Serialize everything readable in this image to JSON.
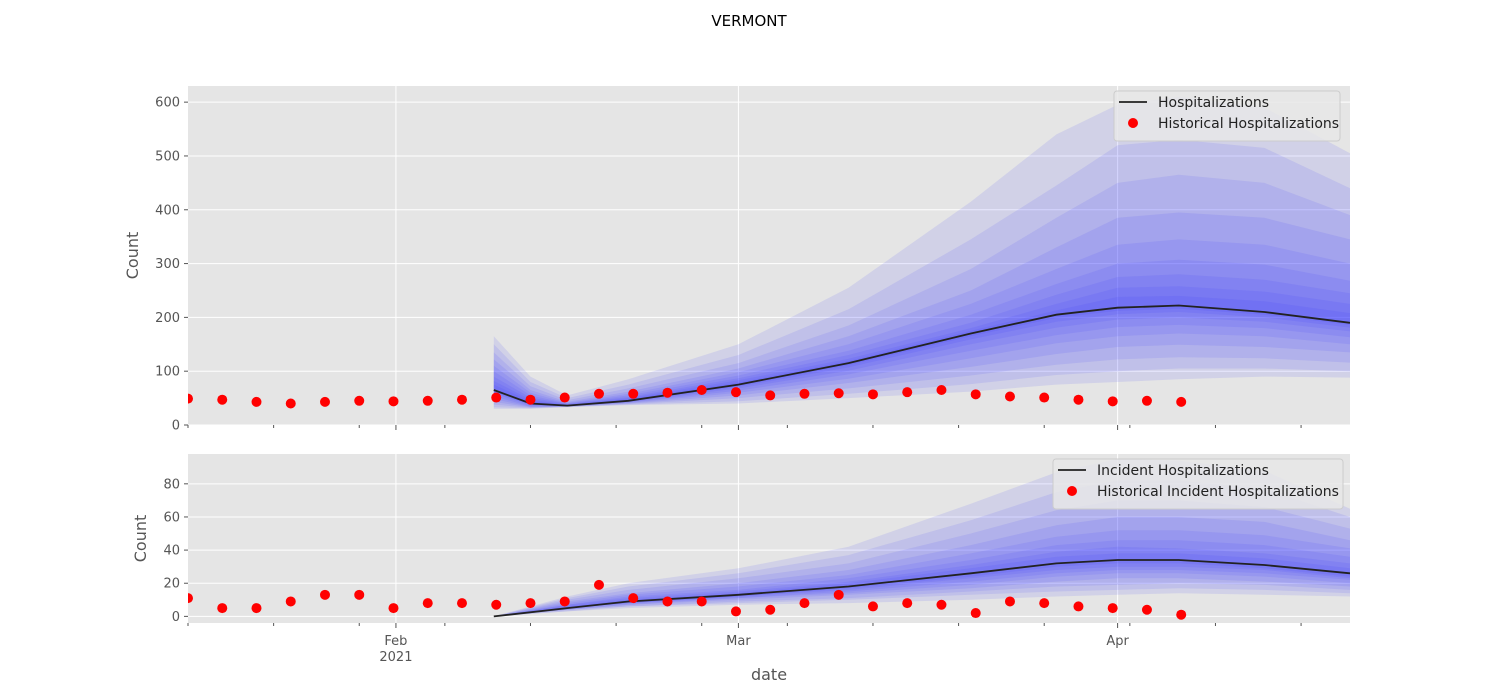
{
  "figure": {
    "title": "VERMONT",
    "xlabel": "date",
    "x_ticks": [
      {
        "date": "2021-02-01",
        "label": "Feb",
        "sublabel": "2021"
      },
      {
        "date": "2021-03-01",
        "label": "Mar",
        "sublabel": ""
      },
      {
        "date": "2021-04-01",
        "label": "Apr",
        "sublabel": ""
      }
    ]
  },
  "colors": {
    "background": "#e5e5e5",
    "grid": "#ffffff",
    "band": "#3a3aff",
    "line": "#222222",
    "points": "#ff0000"
  },
  "chart_data": [
    {
      "type": "line",
      "ylabel": "Count",
      "xlim": [
        "2021-01-15",
        "2021-04-20"
      ],
      "ylim": [
        0,
        630
      ],
      "yticks": [
        0,
        100,
        200,
        300,
        400,
        500,
        600
      ],
      "legend_position": "upper right",
      "legend": [
        "Hospitalizations",
        "Historical Hospitalizations"
      ],
      "historical": {
        "name": "Historical Hospitalizations",
        "start_date": "2021-01-15",
        "values": [
          49,
          47,
          43,
          40,
          43,
          45,
          44,
          45,
          47,
          51,
          47,
          51,
          58,
          58,
          60,
          65,
          61,
          55,
          58,
          59,
          57,
          61,
          65,
          57,
          53,
          51,
          47,
          44,
          45,
          43
        ]
      },
      "forecast": {
        "name": "Hospitalizations",
        "dates": [
          "2021-02-09",
          "2021-02-12",
          "2021-02-15",
          "2021-02-20",
          "2021-03-01",
          "2021-03-10",
          "2021-03-20",
          "2021-03-27",
          "2021-04-01",
          "2021-04-06",
          "2021-04-13",
          "2021-04-20"
        ],
        "median": [
          65,
          40,
          36,
          45,
          75,
          115,
          170,
          205,
          218,
          222,
          210,
          190
        ],
        "upper_band_edges": [
          [
            165,
            90,
            55,
            85,
            150,
            255,
            415,
            540,
            595,
            610,
            590,
            505
          ],
          [
            150,
            80,
            50,
            75,
            130,
            215,
            345,
            445,
            520,
            530,
            515,
            440
          ],
          [
            135,
            72,
            46,
            68,
            115,
            185,
            290,
            385,
            450,
            465,
            450,
            390
          ],
          [
            122,
            65,
            43,
            62,
            105,
            165,
            250,
            330,
            385,
            395,
            385,
            345
          ],
          [
            110,
            60,
            41,
            58,
            98,
            150,
            225,
            290,
            335,
            345,
            335,
            300
          ],
          [
            100,
            55,
            40,
            55,
            92,
            138,
            205,
            262,
            300,
            307,
            298,
            268
          ],
          [
            90,
            51,
            39,
            52,
            87,
            130,
            190,
            242,
            275,
            280,
            270,
            245
          ],
          [
            82,
            47,
            38,
            50,
            83,
            123,
            180,
            225,
            255,
            258,
            248,
            225
          ],
          [
            75,
            44,
            37,
            48,
            79,
            119,
            175,
            213,
            238,
            240,
            230,
            208
          ]
        ],
        "lower_band_edges": [
          [
            30,
            30,
            33,
            37,
            40,
            50,
            62,
            75,
            80,
            85,
            90,
            88
          ],
          [
            33,
            31,
            34,
            38,
            44,
            58,
            76,
            93,
            100,
            105,
            105,
            100
          ],
          [
            38,
            32,
            34,
            39,
            50,
            68,
            92,
            112,
            122,
            126,
            124,
            116
          ],
          [
            43,
            33,
            34,
            40,
            55,
            78,
            108,
            132,
            145,
            149,
            145,
            135
          ],
          [
            48,
            34,
            35,
            41,
            60,
            86,
            124,
            152,
            165,
            170,
            165,
            150
          ],
          [
            53,
            35,
            35,
            42,
            64,
            94,
            138,
            167,
            182,
            186,
            180,
            163
          ],
          [
            58,
            37,
            35,
            43,
            68,
            101,
            150,
            181,
            196,
            200,
            192,
            174
          ],
          [
            61,
            38,
            35,
            44,
            71,
            107,
            159,
            192,
            206,
            210,
            200,
            181
          ],
          [
            63,
            39,
            35,
            44,
            73,
            111,
            165,
            199,
            212,
            216,
            205,
            186
          ]
        ]
      }
    },
    {
      "type": "line",
      "ylabel": "Count",
      "xlim": [
        "2021-01-15",
        "2021-04-20"
      ],
      "ylim": [
        -4,
        98
      ],
      "yticks": [
        0,
        20,
        40,
        60,
        80
      ],
      "legend_position": "upper right",
      "legend": [
        "Incident Hospitalizations",
        "Historical Incident Hospitalizations"
      ],
      "historical": {
        "name": "Historical Incident Hospitalizations",
        "start_date": "2021-01-15",
        "values": [
          11,
          5,
          5,
          9,
          13,
          13,
          5,
          8,
          8,
          7,
          8,
          9,
          19,
          11,
          9,
          9,
          3,
          4,
          8,
          13,
          6,
          8,
          7,
          2,
          9,
          8,
          6,
          5,
          4,
          1
        ]
      },
      "forecast": {
        "name": "Incident Hospitalizations",
        "dates": [
          "2021-02-09",
          "2021-02-15",
          "2021-02-20",
          "2021-03-01",
          "2021-03-10",
          "2021-03-20",
          "2021-03-27",
          "2021-04-01",
          "2021-04-06",
          "2021-04-13",
          "2021-04-20"
        ],
        "median": [
          0,
          5,
          9,
          13,
          18,
          26,
          32,
          34,
          34,
          31,
          26
        ],
        "upper_band_edges": [
          [
            0,
            12,
            20,
            29,
            42,
            68,
            87,
            95,
            94,
            88,
            65
          ],
          [
            0,
            11,
            18,
            26,
            37,
            58,
            75,
            82,
            82,
            77,
            60
          ],
          [
            0,
            10,
            16,
            23,
            32,
            50,
            64,
            70,
            70,
            66,
            53
          ],
          [
            0,
            9,
            14,
            20,
            28,
            43,
            55,
            60,
            60,
            57,
            46
          ],
          [
            0,
            8,
            13,
            18,
            25,
            38,
            48,
            52,
            52,
            49,
            41
          ],
          [
            0,
            7,
            12,
            16,
            23,
            34,
            43,
            46,
            46,
            43,
            36
          ],
          [
            0,
            7,
            11,
            15,
            21,
            31,
            39,
            42,
            41,
            38,
            32
          ],
          [
            0,
            6,
            10,
            14,
            20,
            29,
            36,
            38,
            38,
            35,
            29
          ]
        ],
        "lower_band_edges": [
          [
            0,
            3,
            5,
            7,
            8,
            10,
            12,
            13,
            14,
            13,
            12
          ],
          [
            0,
            3,
            6,
            8,
            10,
            13,
            15,
            16,
            17,
            16,
            14
          ],
          [
            0,
            4,
            6,
            9,
            11,
            15,
            18,
            19,
            20,
            19,
            16
          ],
          [
            0,
            4,
            7,
            10,
            13,
            17,
            21,
            23,
            23,
            21,
            18
          ],
          [
            0,
            4,
            7,
            11,
            14,
            19,
            24,
            26,
            26,
            24,
            20
          ],
          [
            0,
            5,
            8,
            11,
            15,
            21,
            26,
            28,
            28,
            26,
            22
          ],
          [
            0,
            5,
            8,
            12,
            16,
            23,
            28,
            30,
            30,
            28,
            23
          ],
          [
            0,
            5,
            8,
            12,
            17,
            24,
            30,
            32,
            32,
            29,
            24
          ]
        ]
      }
    }
  ]
}
